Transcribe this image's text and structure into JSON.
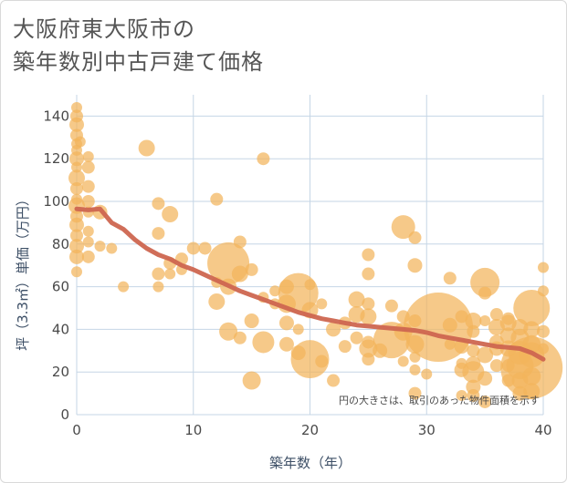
{
  "title_line1": "大阪府東大阪市の",
  "title_line2": "築年数別中古戸建て価格",
  "chart_data": {
    "type": "scatter",
    "xlabel": "築年数（年）",
    "ylabel": "坪（3.3㎡）単価（万円）",
    "xlim": [
      0,
      40
    ],
    "ylim": [
      0,
      150
    ],
    "x_ticks": [
      "0",
      "10",
      "20",
      "30",
      "40"
    ],
    "y_ticks": [
      "0",
      "20",
      "40",
      "60",
      "80",
      "100",
      "120",
      "140"
    ],
    "grid": true,
    "annotation": "円の大きさは、取引のあった物件面積を示す",
    "colors": {
      "bubble": "#f3b45b",
      "trend": "#cd6650",
      "grid": "#c5d6e6"
    },
    "bubbles": [
      {
        "x": 0,
        "y": 144,
        "s": 6
      },
      {
        "x": 0,
        "y": 140,
        "s": 7
      },
      {
        "x": 0,
        "y": 136,
        "s": 8
      },
      {
        "x": 0,
        "y": 131,
        "s": 7
      },
      {
        "x": 0,
        "y": 127,
        "s": 6
      },
      {
        "x": 0,
        "y": 124,
        "s": 6
      },
      {
        "x": 0,
        "y": 120,
        "s": 8
      },
      {
        "x": 0,
        "y": 116,
        "s": 6
      },
      {
        "x": 0,
        "y": 111,
        "s": 9
      },
      {
        "x": 0,
        "y": 106,
        "s": 7
      },
      {
        "x": 0,
        "y": 101,
        "s": 6
      },
      {
        "x": 0,
        "y": 98,
        "s": 9
      },
      {
        "x": 0,
        "y": 93,
        "s": 7
      },
      {
        "x": 0,
        "y": 89,
        "s": 8
      },
      {
        "x": 0,
        "y": 84,
        "s": 7
      },
      {
        "x": 0,
        "y": 79,
        "s": 8
      },
      {
        "x": 0,
        "y": 74,
        "s": 8
      },
      {
        "x": 0,
        "y": 67,
        "s": 6
      },
      {
        "x": 0.3,
        "y": 128,
        "s": 6
      },
      {
        "x": 1,
        "y": 121,
        "s": 6
      },
      {
        "x": 1,
        "y": 116,
        "s": 7
      },
      {
        "x": 1,
        "y": 107,
        "s": 7
      },
      {
        "x": 1,
        "y": 100,
        "s": 7
      },
      {
        "x": 1,
        "y": 95,
        "s": 6
      },
      {
        "x": 1,
        "y": 86,
        "s": 6
      },
      {
        "x": 1,
        "y": 81,
        "s": 6
      },
      {
        "x": 1,
        "y": 74,
        "s": 7
      },
      {
        "x": 2,
        "y": 95,
        "s": 8
      },
      {
        "x": 2,
        "y": 79,
        "s": 6
      },
      {
        "x": 3,
        "y": 78,
        "s": 6
      },
      {
        "x": 4,
        "y": 60,
        "s": 6
      },
      {
        "x": 6,
        "y": 125,
        "s": 9
      },
      {
        "x": 7,
        "y": 99,
        "s": 7
      },
      {
        "x": 7,
        "y": 85,
        "s": 7
      },
      {
        "x": 7,
        "y": 66,
        "s": 7
      },
      {
        "x": 7,
        "y": 60,
        "s": 6
      },
      {
        "x": 8,
        "y": 94,
        "s": 9
      },
      {
        "x": 8,
        "y": 71,
        "s": 7
      },
      {
        "x": 8,
        "y": 66,
        "s": 6
      },
      {
        "x": 9,
        "y": 73,
        "s": 7
      },
      {
        "x": 9,
        "y": 68,
        "s": 6
      },
      {
        "x": 10,
        "y": 78,
        "s": 7
      },
      {
        "x": 11,
        "y": 78,
        "s": 7
      },
      {
        "x": 12,
        "y": 101,
        "s": 7
      },
      {
        "x": 12,
        "y": 62,
        "s": 6
      },
      {
        "x": 12,
        "y": 53,
        "s": 9
      },
      {
        "x": 13,
        "y": 71,
        "s": 23
      },
      {
        "x": 13,
        "y": 60,
        "s": 9
      },
      {
        "x": 13,
        "y": 39,
        "s": 10
      },
      {
        "x": 14,
        "y": 81,
        "s": 7
      },
      {
        "x": 14,
        "y": 66,
        "s": 9
      },
      {
        "x": 14,
        "y": 36,
        "s": 7
      },
      {
        "x": 15,
        "y": 68,
        "s": 7
      },
      {
        "x": 15,
        "y": 44,
        "s": 8
      },
      {
        "x": 15,
        "y": 16,
        "s": 10
      },
      {
        "x": 16,
        "y": 120,
        "s": 7
      },
      {
        "x": 16,
        "y": 55,
        "s": 6
      },
      {
        "x": 16,
        "y": 34,
        "s": 12
      },
      {
        "x": 17,
        "y": 58,
        "s": 6
      },
      {
        "x": 17,
        "y": 52,
        "s": 6
      },
      {
        "x": 18,
        "y": 60,
        "s": 8
      },
      {
        "x": 18,
        "y": 52,
        "s": 10
      },
      {
        "x": 18,
        "y": 43,
        "s": 8
      },
      {
        "x": 18,
        "y": 33,
        "s": 8
      },
      {
        "x": 19,
        "y": 57,
        "s": 22
      },
      {
        "x": 19,
        "y": 40,
        "s": 6
      },
      {
        "x": 19,
        "y": 29,
        "s": 8
      },
      {
        "x": 20,
        "y": 61,
        "s": 6
      },
      {
        "x": 20,
        "y": 49,
        "s": 9
      },
      {
        "x": 20,
        "y": 26,
        "s": 21
      },
      {
        "x": 21,
        "y": 52,
        "s": 6
      },
      {
        "x": 21,
        "y": 25,
        "s": 7
      },
      {
        "x": 22,
        "y": 40,
        "s": 8
      },
      {
        "x": 22,
        "y": 16,
        "s": 7
      },
      {
        "x": 23,
        "y": 43,
        "s": 7
      },
      {
        "x": 23,
        "y": 32,
        "s": 7
      },
      {
        "x": 24,
        "y": 54,
        "s": 9
      },
      {
        "x": 24,
        "y": 47,
        "s": 9
      },
      {
        "x": 24,
        "y": 36,
        "s": 7
      },
      {
        "x": 25,
        "y": 75,
        "s": 7
      },
      {
        "x": 25,
        "y": 66,
        "s": 7
      },
      {
        "x": 25,
        "y": 52,
        "s": 7
      },
      {
        "x": 25,
        "y": 46,
        "s": 9
      },
      {
        "x": 25,
        "y": 34,
        "s": 7
      },
      {
        "x": 25,
        "y": 31,
        "s": 10
      },
      {
        "x": 25,
        "y": 26,
        "s": 7
      },
      {
        "x": 26,
        "y": 30,
        "s": 8
      },
      {
        "x": 27,
        "y": 51,
        "s": 7
      },
      {
        "x": 27,
        "y": 35,
        "s": 20
      },
      {
        "x": 28,
        "y": 88,
        "s": 13
      },
      {
        "x": 28,
        "y": 46,
        "s": 7
      },
      {
        "x": 28,
        "y": 39,
        "s": 10
      },
      {
        "x": 28,
        "y": 25,
        "s": 6
      },
      {
        "x": 29,
        "y": 83,
        "s": 7
      },
      {
        "x": 29,
        "y": 70,
        "s": 8
      },
      {
        "x": 29,
        "y": 44,
        "s": 7
      },
      {
        "x": 29,
        "y": 33,
        "s": 10
      },
      {
        "x": 29,
        "y": 27,
        "s": 6
      },
      {
        "x": 29,
        "y": 21,
        "s": 6
      },
      {
        "x": 29,
        "y": 10,
        "s": 7
      },
      {
        "x": 30,
        "y": 19,
        "s": 6
      },
      {
        "x": 31,
        "y": 41,
        "s": 38
      },
      {
        "x": 32,
        "y": 64,
        "s": 7
      },
      {
        "x": 32,
        "y": 42,
        "s": 8
      },
      {
        "x": 32,
        "y": 33,
        "s": 6
      },
      {
        "x": 33,
        "y": 46,
        "s": 7
      },
      {
        "x": 33,
        "y": 32,
        "s": 8
      },
      {
        "x": 33,
        "y": 24,
        "s": 6
      },
      {
        "x": 33,
        "y": 21,
        "s": 8
      },
      {
        "x": 33,
        "y": 9,
        "s": 6
      },
      {
        "x": 34,
        "y": 44,
        "s": 9
      },
      {
        "x": 34,
        "y": 39,
        "s": 7
      },
      {
        "x": 34,
        "y": 30,
        "s": 7
      },
      {
        "x": 34,
        "y": 24,
        "s": 8
      },
      {
        "x": 34,
        "y": 20,
        "s": 12
      },
      {
        "x": 34,
        "y": 13,
        "s": 8
      },
      {
        "x": 34,
        "y": 9,
        "s": 7
      },
      {
        "x": 35,
        "y": 62,
        "s": 16
      },
      {
        "x": 35,
        "y": 57,
        "s": 7
      },
      {
        "x": 35,
        "y": 44,
        "s": 6
      },
      {
        "x": 35,
        "y": 28,
        "s": 9
      },
      {
        "x": 35,
        "y": 17,
        "s": 8
      },
      {
        "x": 35,
        "y": 6,
        "s": 7
      },
      {
        "x": 36,
        "y": 47,
        "s": 7
      },
      {
        "x": 36,
        "y": 41,
        "s": 9
      },
      {
        "x": 36,
        "y": 34,
        "s": 8
      },
      {
        "x": 36,
        "y": 31,
        "s": 8
      },
      {
        "x": 36,
        "y": 23,
        "s": 7
      },
      {
        "x": 37,
        "y": 45,
        "s": 7
      },
      {
        "x": 37,
        "y": 43,
        "s": 9
      },
      {
        "x": 37,
        "y": 37,
        "s": 9
      },
      {
        "x": 37,
        "y": 31,
        "s": 9
      },
      {
        "x": 37,
        "y": 23,
        "s": 7
      },
      {
        "x": 37,
        "y": 16,
        "s": 7
      },
      {
        "x": 38,
        "y": 41,
        "s": 9
      },
      {
        "x": 38,
        "y": 36,
        "s": 10
      },
      {
        "x": 38,
        "y": 29,
        "s": 13
      },
      {
        "x": 38,
        "y": 23,
        "s": 15
      },
      {
        "x": 38,
        "y": 16,
        "s": 9
      },
      {
        "x": 38,
        "y": 10,
        "s": 8
      },
      {
        "x": 39,
        "y": 50,
        "s": 20
      },
      {
        "x": 39,
        "y": 40,
        "s": 9
      },
      {
        "x": 39,
        "y": 33,
        "s": 10
      },
      {
        "x": 39,
        "y": 28,
        "s": 14
      },
      {
        "x": 39,
        "y": 22,
        "s": 34
      },
      {
        "x": 39,
        "y": 18,
        "s": 10
      },
      {
        "x": 39,
        "y": 11,
        "s": 9
      },
      {
        "x": 40,
        "y": 69,
        "s": 6
      },
      {
        "x": 40,
        "y": 58,
        "s": 6
      },
      {
        "x": 40,
        "y": 39,
        "s": 7
      },
      {
        "x": 40,
        "y": 31,
        "s": 6
      }
    ],
    "trend": {
      "x": [
        0,
        1,
        2,
        3,
        4,
        5,
        6,
        7,
        8,
        9,
        10,
        11,
        12,
        13,
        14,
        15,
        16,
        17,
        18,
        19,
        20,
        21,
        22,
        23,
        24,
        25,
        26,
        27,
        28,
        29,
        30,
        31,
        32,
        33,
        34,
        35,
        36,
        37,
        38,
        39,
        40
      ],
      "y": [
        96.5,
        96,
        96.5,
        90,
        87,
        82,
        78,
        75,
        73,
        70,
        68,
        65.5,
        63,
        60.5,
        58,
        56,
        54,
        52,
        50,
        48,
        46.5,
        45,
        44,
        43,
        42,
        41.5,
        41,
        40.5,
        40,
        39.5,
        38.5,
        37,
        36,
        35,
        34,
        33,
        32,
        31.5,
        31,
        29,
        26
      ]
    }
  }
}
